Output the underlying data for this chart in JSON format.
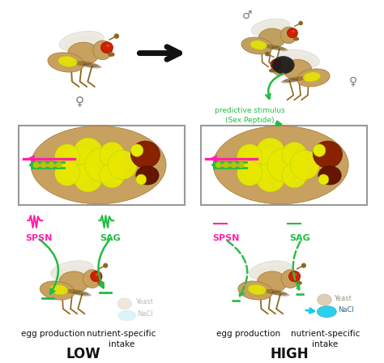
{
  "bg_color": "#ffffff",
  "green": "#22bb44",
  "dgreen": "#33bb44",
  "magenta": "#ff22aa",
  "black": "#111111",
  "gray": "#888888",
  "fly_tan": "#c8a060",
  "fly_med": "#a07830",
  "fly_dark": "#7a5a18",
  "fly_stripe": "#6b4a10",
  "yellow": "#e8e800",
  "yellow2": "#aacc00",
  "red_eye": "#cc2200",
  "dark_red": "#882200",
  "darker_red": "#661500",
  "wing_color": "#e8e4d8",
  "leg_color": "#8b6820",
  "black_body": "#1a1a1a",
  "cyan": "#11ccee",
  "yeast_col": "#d4b896",
  "nacl_col": "#88ddee",
  "low_label": "LOW",
  "high_label": "HIGH",
  "egg_prod": "egg production",
  "nutrient": "nutrient-specific\nintake",
  "spsn": "SPSN",
  "sag": "SAG",
  "pred_stim": "predictive stimulus\n(Sex Peptide)",
  "yeast_txt": "Yeast",
  "nacl_txt": "NaCl",
  "male_sym": "♂",
  "female_sym": "♀"
}
